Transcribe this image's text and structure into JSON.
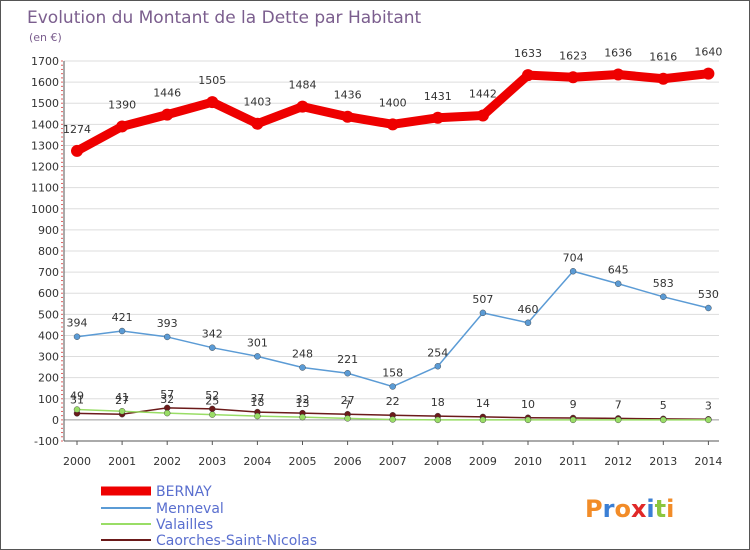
{
  "chart_data": {
    "type": "line",
    "title": "Evolution du Montant de la Dette par Habitant",
    "subtitle": "(en €)",
    "x": [
      "2000",
      "2001",
      "2002",
      "2003",
      "2004",
      "2005",
      "2006",
      "2007",
      "2008",
      "2009",
      "2010",
      "2011",
      "2012",
      "2013",
      "2014"
    ],
    "yticks": [
      "-100",
      "0",
      "100",
      "200",
      "300",
      "400",
      "500",
      "600",
      "700",
      "800",
      "900",
      "1000",
      "1100",
      "1200",
      "1300",
      "1400",
      "1500",
      "1600",
      "1700"
    ],
    "ylim": [
      -100,
      1700
    ],
    "grid": "horizontal",
    "legend_position": "bottom-left",
    "series": [
      {
        "name": "BERNAY",
        "color": "#ee0000",
        "values": [
          1274,
          1390,
          1446,
          1505,
          1403,
          1484,
          1436,
          1400,
          1431,
          1442,
          1633,
          1623,
          1636,
          1616,
          1640
        ],
        "labels": [
          "1274",
          "1390",
          "1446",
          "1505",
          "1403",
          "1484",
          "1436",
          "1400",
          "1431",
          "1442",
          "1633",
          "1623",
          "1636",
          "1616",
          "1640"
        ]
      },
      {
        "name": "Menneval",
        "color": "#5b9bd5",
        "values": [
          394,
          421,
          393,
          342,
          301,
          248,
          221,
          158,
          254,
          507,
          460,
          704,
          645,
          583,
          530
        ],
        "labels": [
          "394",
          "421",
          "393",
          "342",
          "301",
          "248",
          "221",
          "158",
          "254",
          "507",
          "460",
          "704",
          "645",
          "583",
          "530"
        ]
      },
      {
        "name": "Valailles",
        "color": "#99dd66",
        "values": [
          49,
          41,
          32,
          25,
          18,
          13,
          7,
          2,
          0,
          0,
          0,
          0,
          0,
          0,
          0
        ],
        "labels": [
          "49",
          "41",
          "32",
          "25",
          "18",
          "13",
          "7",
          "",
          "",
          "",
          "",
          "",
          "",
          "",
          ""
        ]
      },
      {
        "name": "Caorches-Saint-Nicolas",
        "color": "#6b1a1a",
        "values": [
          31,
          27,
          57,
          52,
          37,
          32,
          27,
          22,
          18,
          14,
          10,
          9,
          7,
          5,
          3
        ],
        "labels": [
          "31",
          "27",
          "57",
          "52",
          "37",
          "32",
          "27",
          "22",
          "18",
          "14",
          "10",
          "9",
          "7",
          "5",
          "3"
        ]
      }
    ]
  },
  "logo": {
    "text": "Proxiti"
  }
}
